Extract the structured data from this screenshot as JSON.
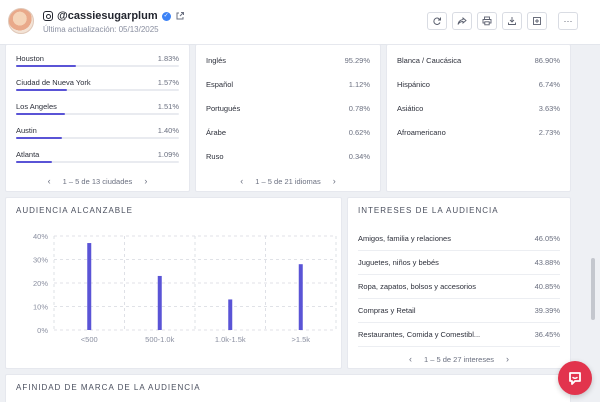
{
  "profile": {
    "handle": "@cassiesugarplum",
    "updated": "Última actualización: 05/13/2025"
  },
  "icons": {
    "platform": "instagram-icon",
    "verified": "verified-badge-icon",
    "external": "external-link-icon",
    "toolbar": [
      "refresh-icon",
      "share-icon",
      "print-icon",
      "download-icon",
      "add-to-list-icon",
      "more-icon"
    ],
    "chat": "chat-icon"
  },
  "cities": {
    "items": [
      {
        "label": "Houston",
        "value": "1.83%",
        "pct": 1.83
      },
      {
        "label": "Ciudad de Nueva York",
        "value": "1.57%",
        "pct": 1.57
      },
      {
        "label": "Los Angeles",
        "value": "1.51%",
        "pct": 1.51
      },
      {
        "label": "Austin",
        "value": "1.40%",
        "pct": 1.4
      },
      {
        "label": "Atlanta",
        "value": "1.09%",
        "pct": 1.09
      }
    ],
    "pager": "1 – 5 de 13 ciudades"
  },
  "languages": {
    "items": [
      {
        "label": "Inglés",
        "value": "95.29%"
      },
      {
        "label": "Español",
        "value": "1.12%"
      },
      {
        "label": "Portugués",
        "value": "0.78%"
      },
      {
        "label": "Árabe",
        "value": "0.62%"
      },
      {
        "label": "Ruso",
        "value": "0.34%"
      }
    ],
    "pager": "1 – 5 de 21 idiomas"
  },
  "ethnicity": {
    "items": [
      {
        "label": "Blanca / Caucásica",
        "value": "86.90%"
      },
      {
        "label": "Hispánico",
        "value": "6.74%"
      },
      {
        "label": "Asiático",
        "value": "3.63%"
      },
      {
        "label": "Afroamericano",
        "value": "2.73%"
      }
    ]
  },
  "reach": {
    "title": "AUDIENCIA ALCANZABLE"
  },
  "chart_data": {
    "type": "bar",
    "categories": [
      "<500",
      "500-1.0k",
      "1.0k-1.5k",
      ">1.5k"
    ],
    "values": [
      37,
      23,
      13,
      28
    ],
    "y_ticks": [
      "0%",
      "10%",
      "20%",
      "30%",
      "40%"
    ],
    "ylim": [
      0,
      40
    ],
    "grid": true,
    "bar_color": "#5a54d6"
  },
  "interests": {
    "title": "INTERESES DE LA AUDIENCIA",
    "items": [
      {
        "label": "Amigos, familia y relaciones",
        "value": "46.05%"
      },
      {
        "label": "Juguetes, niños y bebés",
        "value": "43.88%"
      },
      {
        "label": "Ropa, zapatos, bolsos y accesorios",
        "value": "40.85%"
      },
      {
        "label": "Compras y Retail",
        "value": "39.39%"
      },
      {
        "label": "Restaurantes, Comida y Comestibl...",
        "value": "36.45%"
      }
    ],
    "pager": "1 – 5 de 27 intereses"
  },
  "brand_affinity": {
    "title": "AFINIDAD DE MARCA DE LA AUDIENCIA"
  }
}
